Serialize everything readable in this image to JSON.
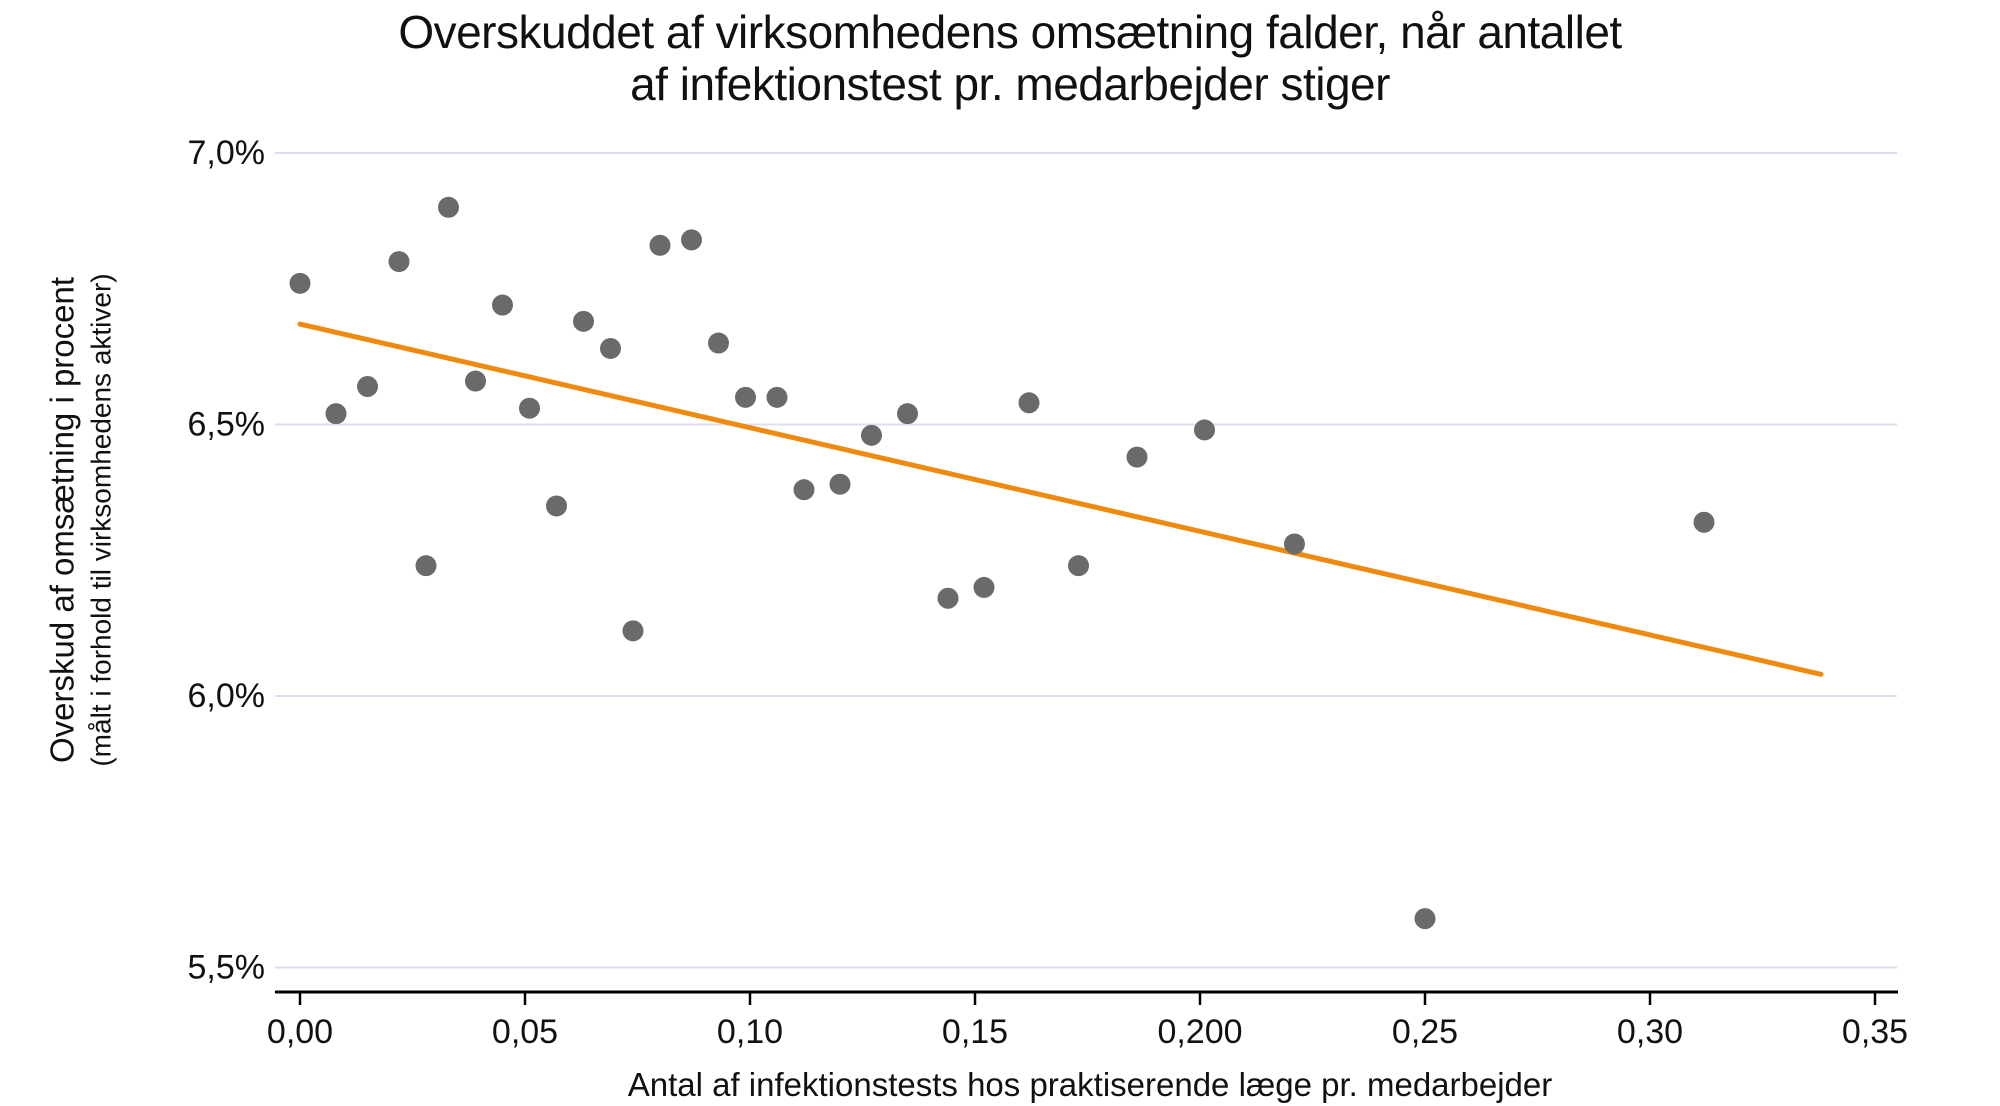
{
  "title": {
    "line1": "Overskuddet af virksomhedens omsætning falder, når antallet",
    "line2": "af infektionstest pr. medarbejder stiger"
  },
  "colors": {
    "background": "#ffffff",
    "dot": "#6a6a6a",
    "trend": "#ef8a10",
    "grid": "#dcdeef",
    "axis": "#000000",
    "text": "#111111"
  },
  "chart_data": {
    "type": "scatter",
    "title": "Overskuddet af virksomhedens omsætning falder, når antallet af infektionstest pr. medarbejder stiger",
    "xlabel": "Antal af infektionstests hos praktiserende læge pr. medarbejder",
    "ylabel_line1": "Overskud af omsætning i procent",
    "ylabel_line2": "(målt i forhold til virksomhedens aktiver)",
    "xlim": [
      0.0,
      0.35
    ],
    "ylim": [
      5.5,
      7.0
    ],
    "grid": "horizontal-only",
    "legend": "none",
    "x_ticks": [
      {
        "value": 0.0,
        "label": "0,00"
      },
      {
        "value": 0.05,
        "label": "0,05"
      },
      {
        "value": 0.1,
        "label": "0,10"
      },
      {
        "value": 0.15,
        "label": "0,15"
      },
      {
        "value": 0.2,
        "label": "0,200"
      },
      {
        "value": 0.25,
        "label": "0,25"
      },
      {
        "value": 0.3,
        "label": "0,30"
      },
      {
        "value": 0.35,
        "label": "0,35"
      }
    ],
    "y_ticks": [
      {
        "value": 7.0,
        "label": "7,0%"
      },
      {
        "value": 6.5,
        "label": "6,5%"
      },
      {
        "value": 6.0,
        "label": "6,0%"
      },
      {
        "value": 5.5,
        "label": "5,5%"
      }
    ],
    "points": [
      [
        0.0,
        6.76
      ],
      [
        0.008,
        6.52
      ],
      [
        0.015,
        6.57
      ],
      [
        0.022,
        6.8
      ],
      [
        0.028,
        6.24
      ],
      [
        0.033,
        6.9
      ],
      [
        0.039,
        6.58
      ],
      [
        0.045,
        6.72
      ],
      [
        0.051,
        6.53
      ],
      [
        0.057,
        6.35
      ],
      [
        0.063,
        6.69
      ],
      [
        0.069,
        6.64
      ],
      [
        0.074,
        6.12
      ],
      [
        0.08,
        6.83
      ],
      [
        0.087,
        6.84
      ],
      [
        0.093,
        6.65
      ],
      [
        0.099,
        6.55
      ],
      [
        0.106,
        6.55
      ],
      [
        0.112,
        6.38
      ],
      [
        0.12,
        6.39
      ],
      [
        0.127,
        6.48
      ],
      [
        0.135,
        6.52
      ],
      [
        0.144,
        6.18
      ],
      [
        0.152,
        6.2
      ],
      [
        0.162,
        6.54
      ],
      [
        0.173,
        6.24
      ],
      [
        0.186,
        6.44
      ],
      [
        0.201,
        6.49
      ],
      [
        0.221,
        6.28
      ],
      [
        0.25,
        5.59
      ],
      [
        0.312,
        6.32
      ]
    ],
    "trend_line": {
      "x1": 0.0,
      "y1": 6.685,
      "x2": 0.338,
      "y2": 6.04
    }
  }
}
